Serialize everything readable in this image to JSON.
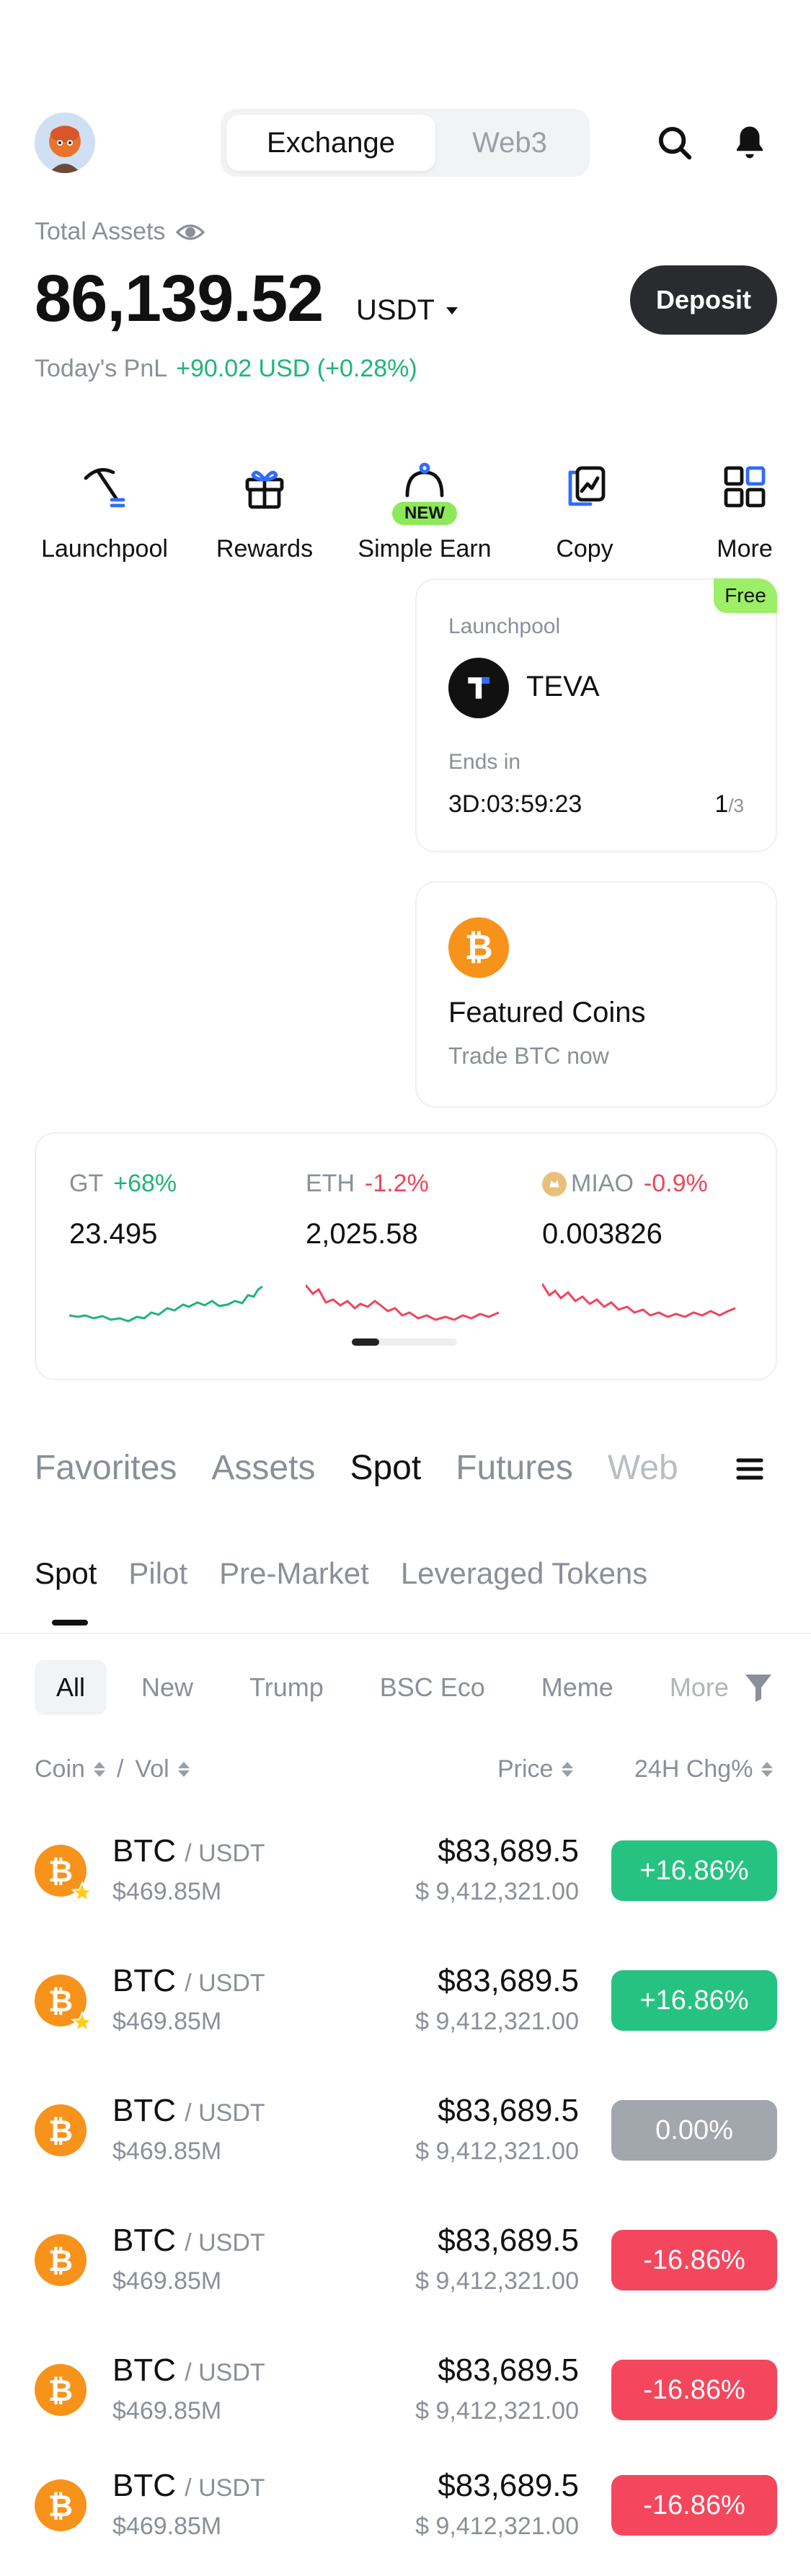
{
  "header": {
    "tabs": [
      "Exchange",
      "Web3"
    ],
    "active_tab": "Exchange"
  },
  "assets": {
    "label": "Total Assets",
    "balance": "86,139.52",
    "currency": "USDT",
    "deposit_label": "Deposit",
    "pnl_label": "Today's PnL",
    "pnl_value": "+90.02 USD (+0.28%)"
  },
  "quick_actions": [
    {
      "label": "Launchpool",
      "icon": "pickaxe-icon"
    },
    {
      "label": "Rewards",
      "icon": "gift-icon"
    },
    {
      "label": "Simple Earn",
      "icon": "piggy-bank-icon",
      "badge": "NEW"
    },
    {
      "label": "Copy",
      "icon": "copy-trade-icon"
    },
    {
      "label": "More",
      "icon": "grid-icon"
    }
  ],
  "launchpool_card": {
    "badge": "Free",
    "title": "Launchpool",
    "token": "TEVA",
    "ends_label": "Ends in",
    "countdown": "3D:03:59:23",
    "page_current": "1",
    "page_total": "/3"
  },
  "featured_card": {
    "title": "Featured Coins",
    "subtitle": "Trade BTC now"
  },
  "markets": [
    {
      "symbol": "GT",
      "change": "+68%",
      "price": "23.495",
      "trend": "up",
      "color": "#1fb57a"
    },
    {
      "symbol": "ETH",
      "change": "-1.2%",
      "price": "2,025.58",
      "trend": "down",
      "color": "#f0455b"
    },
    {
      "symbol": "MIAO",
      "change": "-0.9%",
      "price": "0.003826",
      "trend": "down",
      "color": "#f0455b"
    }
  ],
  "main_tabs": [
    "Favorites",
    "Assets",
    "Spot",
    "Futures",
    "Web"
  ],
  "main_tabs_active": "Spot",
  "sub_tabs": [
    "Spot",
    "Pilot",
    "Pre-Market",
    "Leveraged Tokens"
  ],
  "sub_tabs_active": "Spot",
  "chips": [
    "All",
    "New",
    "Trump",
    "BSC Eco",
    "Meme",
    "More"
  ],
  "chips_active": "All",
  "columns": {
    "coin": "Coin",
    "sep": "/",
    "vol": "Vol",
    "price": "Price",
    "change": "24H Chg%"
  },
  "rows": [
    {
      "base": "BTC",
      "quote": "/ USDT",
      "vol": "$469.85M",
      "price": "$83,689.5",
      "price_fiat": "$ 9,412,321.00",
      "change": "+16.86%",
      "status": "up",
      "fav": true
    },
    {
      "base": "BTC",
      "quote": "/ USDT",
      "vol": "$469.85M",
      "price": "$83,689.5",
      "price_fiat": "$ 9,412,321.00",
      "change": "+16.86%",
      "status": "up",
      "fav": true
    },
    {
      "base": "BTC",
      "quote": "/ USDT",
      "vol": "$469.85M",
      "price": "$83,689.5",
      "price_fiat": "$ 9,412,321.00",
      "change": "0.00%",
      "status": "flat",
      "fav": false
    },
    {
      "base": "BTC",
      "quote": "/ USDT",
      "vol": "$469.85M",
      "price": "$83,689.5",
      "price_fiat": "$ 9,412,321.00",
      "change": "-16.86%",
      "status": "down",
      "fav": false
    },
    {
      "base": "BTC",
      "quote": "/ USDT",
      "vol": "$469.85M",
      "price": "$83,689.5",
      "price_fiat": "$ 9,412,321.00",
      "change": "-16.86%",
      "status": "down",
      "fav": false
    },
    {
      "base": "BTC",
      "quote": "/ USDT",
      "vol": "$469.85M",
      "price": "$83,689.5",
      "price_fiat": "$ 9,412,321.00",
      "change": "-16.86%",
      "status": "down",
      "fav": false
    }
  ],
  "colors": {
    "up": "#26c281",
    "down": "#f4475d",
    "flat": "#a2a6ad",
    "accent_green": "#1fb57a",
    "btc": "#f7931a"
  }
}
